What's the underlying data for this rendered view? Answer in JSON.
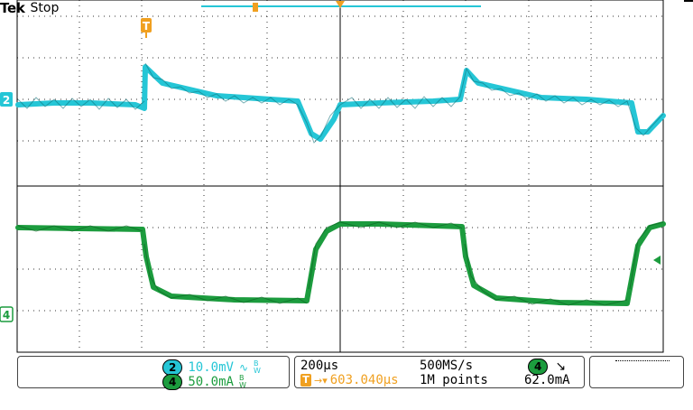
{
  "header": {
    "brand": "Tek",
    "status": "Stop"
  },
  "markers": {
    "trigger_label": "T",
    "ch2_marker": "2",
    "ch4_marker": "4"
  },
  "bottom_panels": {
    "left": {
      "ch2_badge": "2",
      "ch2_scale": "10.0mV",
      "ch2_coupling": "∿",
      "ch2_bw": "B\nW",
      "ch4_badge": "4",
      "ch4_scale": "50.0mA",
      "ch4_bw": "B\nW"
    },
    "middle": {
      "timebase": "200µs",
      "sample_rate": "500MS/s",
      "trigger_icon": "T",
      "trigger_arrow": "→▾",
      "trigger_pos": "603.040µs",
      "record_len": "1M points",
      "trig_source_badge": "4",
      "trig_slope": "↘",
      "trig_level": "62.0mA"
    }
  },
  "colors": {
    "ch2": "#25c6d6",
    "ch4": "#1c9c3e",
    "trigger": "#f0a020",
    "grid": "#000000"
  }
}
